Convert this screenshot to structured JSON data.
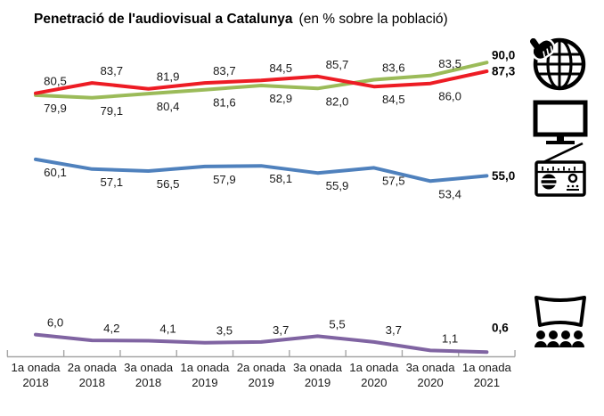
{
  "chart_data": {
    "type": "line",
    "title": "Penetració de l'audiovisual a Catalunya",
    "subtitle": "(en % sobre la població)",
    "ylim": [
      0,
      100
    ],
    "grid": false,
    "legend_position": "icons-right",
    "axis_color": "#a6a6a6",
    "x_categories": [
      {
        "wave": "1a onada",
        "year": "2018"
      },
      {
        "wave": "2a onada",
        "year": "2018"
      },
      {
        "wave": "3a onada",
        "year": "2018"
      },
      {
        "wave": "1a onada",
        "year": "2019"
      },
      {
        "wave": "2a onada",
        "year": "2019"
      },
      {
        "wave": "3a onada",
        "year": "2019"
      },
      {
        "wave": "1a onada",
        "year": "2020"
      },
      {
        "wave": "3a onada",
        "year": "2020"
      },
      {
        "wave": "1a onada",
        "year": "2021"
      }
    ],
    "series": [
      {
        "name": "internet",
        "icon": "internet-globe-icon",
        "color": "#9bbb59",
        "values": [
          79.9,
          79.1,
          80.4,
          81.6,
          82.9,
          82.0,
          83.6,
          83.5,
          90.0
        ],
        "point_labels": [
          "79,9",
          "79,1",
          "80,4",
          "81,6",
          "82,9",
          "82,0",
          "83,6",
          "83,5"
        ],
        "end_label": "90,0",
        "label_sides": [
          "below",
          "below",
          "below",
          "below",
          "below",
          "below",
          "above",
          "above"
        ],
        "draw_y_offsets": [
          0,
          0,
          0,
          0,
          0,
          0,
          -4,
          -9,
          0
        ],
        "end_label_dy": -8
      },
      {
        "name": "televisio",
        "icon": "television-icon",
        "color": "#ed1c24",
        "values": [
          80.5,
          83.7,
          81.9,
          83.7,
          84.5,
          85.7,
          84.5,
          86.0,
          87.3
        ],
        "point_labels": [
          "80,5",
          "83,7",
          "81,9",
          "83,7",
          "84,5",
          "85,7",
          "84,5",
          "86,0"
        ],
        "end_label": "87,3",
        "label_sides": [
          "above",
          "above",
          "above",
          "above",
          "above",
          "above",
          "below",
          "below"
        ],
        "draw_y_offsets": [
          0,
          0,
          0,
          0,
          0,
          0,
          7,
          9,
          0
        ],
        "end_label_dy": 0
      },
      {
        "name": "radio",
        "icon": "radio-icon",
        "color": "#4f81bd",
        "values": [
          60.1,
          57.1,
          56.5,
          57.9,
          58.1,
          55.9,
          57.5,
          53.4,
          55.0
        ],
        "point_labels": [
          "60,1",
          "57,1",
          "56,5",
          "57,9",
          "58,1",
          "55,9",
          "57,5",
          "53,4"
        ],
        "end_label": "55,0",
        "label_sides": [
          "below",
          "below",
          "below",
          "below",
          "below",
          "below",
          "below",
          "below"
        ],
        "draw_y_offsets": [
          0,
          0,
          0,
          0,
          0,
          0,
          0,
          0,
          0
        ],
        "end_label_dy": 0
      },
      {
        "name": "cinema",
        "icon": "cinema-screen-icon",
        "color": "#8064a2",
        "values": [
          6.0,
          4.2,
          4.1,
          3.5,
          3.7,
          5.5,
          3.7,
          1.1,
          0.6
        ],
        "point_labels": [
          "6,0",
          "4,2",
          "4,1",
          "3,5",
          "3,7",
          "5,5",
          "3,7",
          "1,1"
        ],
        "end_label": "0,6",
        "label_sides": [
          "above",
          "above",
          "above",
          "above",
          "above",
          "above",
          "above",
          "above"
        ],
        "draw_y_offsets": [
          0,
          0,
          0,
          0,
          0,
          0,
          0,
          0,
          0
        ],
        "end_label_dy": -27
      }
    ],
    "icons": [
      "internet-globe-icon",
      "television-icon",
      "radio-icon",
      "cinema-screen-icon"
    ]
  }
}
